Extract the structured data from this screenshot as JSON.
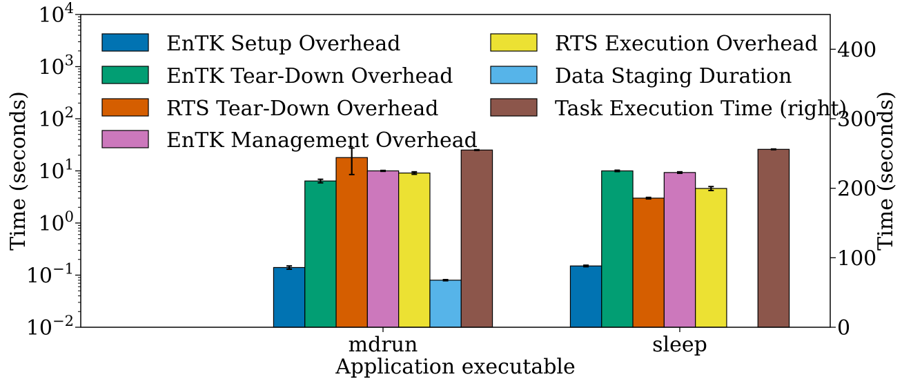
{
  "chart_data": {
    "type": "bar",
    "xlabel": "Application executable",
    "ylabel_left": "Time (seconds)",
    "ylabel_right": "Time (seconds)",
    "categories": [
      "mdrun",
      "sleep"
    ],
    "left_axis": {
      "scale": "log",
      "ylim": [
        0.01,
        10000
      ],
      "ticks": [
        {
          "base": "10",
          "exp": "−2"
        },
        {
          "base": "10",
          "exp": "−1"
        },
        {
          "base": "10",
          "exp": "0"
        },
        {
          "base": "10",
          "exp": "1"
        },
        {
          "base": "10",
          "exp": "2"
        },
        {
          "base": "10",
          "exp": "3"
        },
        {
          "base": "10",
          "exp": "4"
        }
      ],
      "tick_values": [
        0.01,
        0.1,
        1,
        10,
        100,
        1000,
        10000
      ]
    },
    "right_axis": {
      "scale": "linear",
      "ylim": [
        0,
        450
      ],
      "ticks": [
        "0",
        "100",
        "200",
        "300",
        "400"
      ],
      "tick_values": [
        0,
        100,
        200,
        300,
        400
      ]
    },
    "series": [
      {
        "name": "EnTK Setup Overhead",
        "color": "#0173b2",
        "axis": "left",
        "values": [
          0.14,
          0.15
        ],
        "errors": [
          0.01,
          0.005
        ]
      },
      {
        "name": "EnTK Tear-Down Overhead",
        "color": "#029e73",
        "axis": "left",
        "values": [
          6.4,
          10.0
        ],
        "errors": [
          0.5,
          0.3
        ]
      },
      {
        "name": "RTS Tear-Down Overhead",
        "color": "#d55e00",
        "axis": "left",
        "values": [
          18.0,
          3.0
        ],
        "errors": [
          9.5,
          0.1
        ]
      },
      {
        "name": "EnTK Management Overhead",
        "color": "#cc78bc",
        "axis": "left",
        "values": [
          10.0,
          9.3
        ],
        "errors": [
          0.2,
          0.3
        ]
      },
      {
        "name": "RTS Execution Overhead",
        "color": "#ece133",
        "axis": "left",
        "values": [
          9.1,
          4.6
        ],
        "errors": [
          0.5,
          0.4
        ]
      },
      {
        "name": "Data Staging Duration",
        "color": "#56b4e9",
        "axis": "left",
        "values": [
          0.08,
          null
        ],
        "errors": [
          0.002,
          null
        ]
      },
      {
        "name": "Task Execution Time (right)",
        "color": "#8c564b",
        "axis": "right",
        "values": [
          255,
          256
        ],
        "errors": [
          0.5,
          0.5
        ]
      }
    ],
    "legend": {
      "placement": "top",
      "columns": 2
    },
    "grid": false
  }
}
